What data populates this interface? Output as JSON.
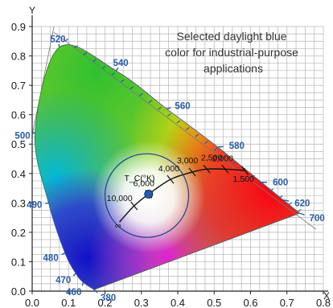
{
  "chart_data": {
    "type": "scatter",
    "title": "",
    "xlabel": "X",
    "ylabel": "Y",
    "xlim": [
      0.0,
      0.8
    ],
    "ylim": [
      0.0,
      0.9
    ],
    "x_ticks": [
      "0.0",
      "0.1",
      "0.2",
      "0.3",
      "0.4",
      "0.5",
      "0.6",
      "0.7",
      "0.8"
    ],
    "y_ticks": [
      "0.0",
      "0.1",
      "0.2",
      "0.3",
      "0.4",
      "0.5",
      "0.6",
      "0.7",
      "0.8",
      "0.9"
    ],
    "grid": true,
    "annotation": {
      "lines": [
        "Selected daylight blue",
        "color for industrial-purpose",
        "applications"
      ]
    },
    "spectral_locus": [
      {
        "label": "380",
        "x": 0.17,
        "y": 0.005
      },
      {
        "label": "460",
        "x": 0.14,
        "y": 0.03
      },
      {
        "label": "470",
        "x": 0.12,
        "y": 0.06
      },
      {
        "label": "480",
        "x": 0.09,
        "y": 0.13
      },
      {
        "label": "490",
        "x": 0.045,
        "y": 0.3
      },
      {
        "label": "500",
        "x": 0.008,
        "y": 0.54
      },
      {
        "label": "520",
        "x": 0.075,
        "y": 0.83
      },
      {
        "label": "540",
        "x": 0.23,
        "y": 0.75
      },
      {
        "label": "560",
        "x": 0.37,
        "y": 0.62
      },
      {
        "label": "580",
        "x": 0.51,
        "y": 0.49
      },
      {
        "label": "600",
        "x": 0.63,
        "y": 0.37
      },
      {
        "label": "620",
        "x": 0.69,
        "y": 0.31
      },
      {
        "label": "700",
        "x": 0.735,
        "y": 0.265
      }
    ],
    "planckian_locus": {
      "label": "T_C(°K)",
      "points": [
        {
          "label": "∞",
          "x": 0.24,
          "y": 0.235
        },
        {
          "label": "10,000",
          "x": 0.28,
          "y": 0.29
        },
        {
          "label": "6,000",
          "x": 0.32,
          "y": 0.33
        },
        {
          "label": "4,000",
          "x": 0.38,
          "y": 0.38
        },
        {
          "label": "3,000",
          "x": 0.44,
          "y": 0.405
        },
        {
          "label": "2,500",
          "x": 0.48,
          "y": 0.415
        },
        {
          "label": "2,000",
          "x": 0.53,
          "y": 0.415
        },
        {
          "label": "1,500",
          "x": 0.585,
          "y": 0.41
        }
      ]
    },
    "selected_point": {
      "label": "6,000",
      "x": 0.32,
      "y": 0.33
    }
  },
  "colors": {
    "grid": "#b5b5b5",
    "wavelength_labels": "#2a5aa8",
    "selected_point": "#2a5aa8",
    "locus_line": "#111111",
    "white_point": "#ffffff"
  }
}
